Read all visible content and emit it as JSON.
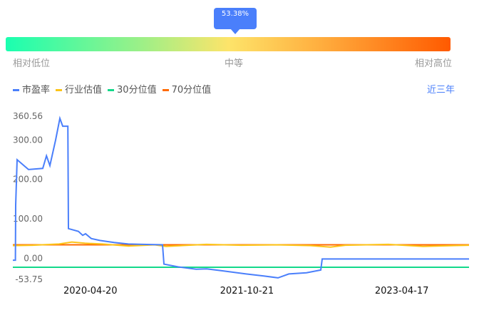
{
  "gauge": {
    "percent_label": "53.38%",
    "percent": 53.38,
    "low_label": "相对低位",
    "mid_label": "中等",
    "high_label": "相对高位"
  },
  "legend": [
    {
      "label": "市盈率",
      "color": "#4a7ffb"
    },
    {
      "label": "行业估值",
      "color": "#fcc419"
    },
    {
      "label": "30分位值",
      "color": "#13d98a"
    },
    {
      "label": "70分位值",
      "color": "#ff6a00"
    }
  ],
  "range_button": "近三年",
  "chart_data": {
    "type": "line",
    "y_ticks": [
      "360.56",
      "300.00",
      "200.00",
      "100.00",
      "0.00",
      "-53.75"
    ],
    "x_ticks": [
      "2020-04-20",
      "2021-10-21",
      "2023-04-17"
    ],
    "ylim": [
      -53.75,
      360.56
    ],
    "xlim": [
      "2019-07-23",
      "2023-12-09"
    ],
    "series": [
      {
        "name": "市盈率",
        "color": "#4a7ffb",
        "points": [
          [
            "2019-07-23",
            -5
          ],
          [
            "2019-08-01",
            -5
          ],
          [
            "2019-08-02",
            135
          ],
          [
            "2019-08-07",
            250
          ],
          [
            "2019-09-16",
            225
          ],
          [
            "2019-11-05",
            228
          ],
          [
            "2019-11-18",
            260
          ],
          [
            "2019-11-30",
            235
          ],
          [
            "2019-12-20",
            300
          ],
          [
            "2020-01-04",
            355
          ],
          [
            "2020-01-14",
            335
          ],
          [
            "2020-02-01",
            335
          ],
          [
            "2020-02-03",
            75
          ],
          [
            "2020-03-09",
            68
          ],
          [
            "2020-03-24",
            58
          ],
          [
            "2020-04-03",
            62
          ],
          [
            "2020-04-23",
            50
          ],
          [
            "2020-05-23",
            45
          ],
          [
            "2020-07-12",
            40
          ],
          [
            "2020-08-31",
            36
          ],
          [
            "2020-10-20",
            35
          ],
          [
            "2020-12-29",
            34
          ],
          [
            "2021-01-03",
            -15
          ],
          [
            "2021-02-22",
            -22
          ],
          [
            "2021-04-26",
            -28
          ],
          [
            "2021-06-02",
            -27
          ],
          [
            "2021-07-27",
            -32
          ],
          [
            "2021-10-18",
            -40
          ],
          [
            "2021-12-19",
            -45
          ],
          [
            "2022-02-07",
            -50
          ],
          [
            "2022-03-17",
            -40
          ],
          [
            "2022-05-18",
            -37
          ],
          [
            "2022-07-07",
            -30
          ],
          [
            "2022-07-12",
            -2
          ],
          [
            "2023-12-09",
            -2
          ]
        ]
      },
      {
        "name": "行业估值",
        "color": "#fcc419",
        "points": [
          [
            "2019-07-23",
            32
          ],
          [
            "2019-10-01",
            33
          ],
          [
            "2020-01-01",
            36
          ],
          [
            "2020-02-15",
            41
          ],
          [
            "2020-04-01",
            38
          ],
          [
            "2020-06-01",
            36
          ],
          [
            "2020-09-01",
            31
          ],
          [
            "2020-12-01",
            34
          ],
          [
            "2021-01-10",
            30
          ],
          [
            "2021-06-01",
            35
          ],
          [
            "2021-10-01",
            33
          ],
          [
            "2022-02-01",
            34
          ],
          [
            "2022-06-01",
            32
          ],
          [
            "2022-08-10",
            28
          ],
          [
            "2022-10-01",
            33
          ],
          [
            "2023-03-01",
            35
          ],
          [
            "2023-07-01",
            30
          ],
          [
            "2023-12-09",
            33
          ]
        ]
      },
      {
        "name": "30分位值",
        "color": "#13d98a",
        "points": [
          [
            "2019-07-23",
            -23
          ],
          [
            "2023-12-09",
            -23
          ]
        ]
      },
      {
        "name": "70分位值",
        "color": "#ff6a00",
        "points": [
          [
            "2019-07-23",
            34
          ],
          [
            "2023-12-09",
            34
          ]
        ]
      }
    ]
  }
}
